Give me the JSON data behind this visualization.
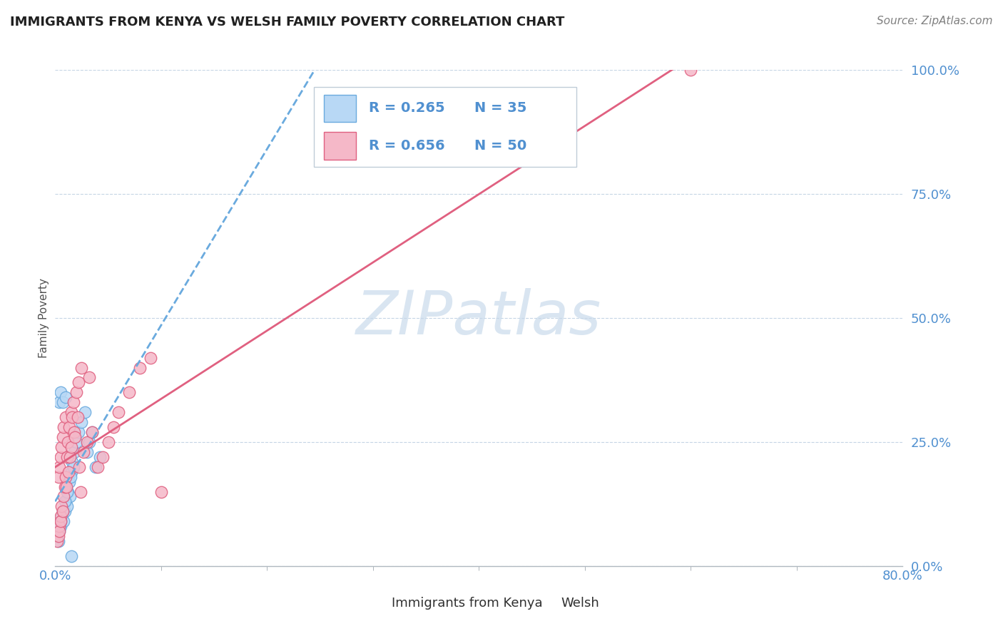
{
  "title": "IMMIGRANTS FROM KENYA VS WELSH FAMILY POVERTY CORRELATION CHART",
  "source": "Source: ZipAtlas.com",
  "ylabel": "Family Poverty",
  "xlim": [
    0,
    80
  ],
  "ylim": [
    0,
    100
  ],
  "ytick_values": [
    0,
    25,
    50,
    75,
    100
  ],
  "ytick_labels": [
    "0.0%",
    "25.0%",
    "50.0%",
    "75.0%",
    "100.0%"
  ],
  "xtick_left": "0.0%",
  "xtick_right": "80.0%",
  "series": [
    {
      "name": "Immigrants from Kenya",
      "R": 0.265,
      "N": 35,
      "scatter_color": "#b8d8f5",
      "edge_color": "#6aaade",
      "trend_color": "#6aaade",
      "trend_dash": true,
      "points_x": [
        0.3,
        0.4,
        0.5,
        0.5,
        0.6,
        0.7,
        0.8,
        0.9,
        1.0,
        1.0,
        1.1,
        1.2,
        1.3,
        1.4,
        1.5,
        1.6,
        1.8,
        2.0,
        2.2,
        2.5,
        2.8,
        3.0,
        3.2,
        3.5,
        3.8,
        4.2,
        0.2,
        0.35,
        0.55,
        0.75,
        0.95,
        1.15,
        1.45,
        1.75,
        1.5
      ],
      "points_y": [
        5,
        33,
        8,
        35,
        10,
        33,
        9,
        11,
        13,
        34,
        12,
        15,
        17,
        14,
        19,
        21,
        23,
        25,
        27,
        29,
        31,
        23,
        25,
        27,
        20,
        22,
        6,
        7,
        9,
        11,
        13,
        15,
        18,
        20,
        2
      ]
    },
    {
      "name": "Welsh",
      "R": 0.656,
      "N": 50,
      "scatter_color": "#f5b8c8",
      "edge_color": "#e06080",
      "trend_color": "#e06080",
      "trend_dash": false,
      "points_x": [
        0.2,
        0.3,
        0.3,
        0.4,
        0.4,
        0.5,
        0.5,
        0.6,
        0.6,
        0.7,
        0.8,
        0.8,
        0.9,
        1.0,
        1.0,
        1.1,
        1.2,
        1.3,
        1.4,
        1.5,
        1.6,
        1.7,
        1.8,
        2.0,
        2.2,
        2.3,
        2.5,
        2.7,
        3.0,
        3.2,
        3.5,
        4.0,
        4.5,
        5.0,
        5.5,
        6.0,
        7.0,
        8.0,
        9.0,
        10.0,
        0.35,
        0.55,
        0.75,
        1.05,
        1.25,
        1.55,
        1.85,
        2.1,
        60.0,
        2.4
      ],
      "points_y": [
        5,
        6,
        18,
        8,
        20,
        10,
        22,
        12,
        24,
        26,
        14,
        28,
        16,
        18,
        30,
        22,
        25,
        28,
        22,
        31,
        30,
        33,
        27,
        35,
        37,
        20,
        40,
        23,
        25,
        38,
        27,
        20,
        22,
        25,
        28,
        31,
        35,
        40,
        42,
        15,
        7,
        9,
        11,
        16,
        19,
        24,
        26,
        30,
        100,
        15
      ]
    }
  ],
  "trend_intercept_blue": [
    5,
    50
  ],
  "trend_intercept_pink": [
    0,
    75
  ],
  "watermark_text": "ZIPatlas",
  "watermark_color": "#c5d8ea",
  "title_color": "#202020",
  "axis_label_color": "#5090d0",
  "grid_color": "#c5d5e5",
  "bg_color": "#ffffff",
  "legend_text_color": "#202020",
  "legend_R_N_color": "#5090d0",
  "source_color": "#808080"
}
